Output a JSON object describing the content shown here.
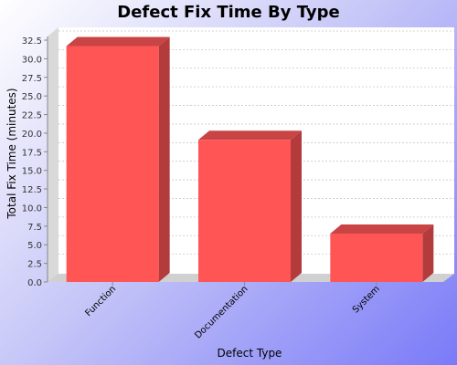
{
  "chart_data": {
    "type": "bar",
    "title": "Defect Fix Time By Type",
    "xlabel": "Defect Type",
    "ylabel": "Total Fix Time (minutes)",
    "categories": [
      "Function",
      "Documentation",
      "System"
    ],
    "values": [
      31.7,
      19.1,
      6.5
    ],
    "ylim": [
      0,
      32.5
    ],
    "yticks": [
      "0.0",
      "2.5",
      "5.0",
      "7.5",
      "10.0",
      "12.5",
      "15.0",
      "17.5",
      "20.0",
      "22.5",
      "25.0",
      "27.5",
      "30.0",
      "32.5"
    ],
    "grid": true,
    "bar_color": "#ff5555",
    "bar_side_color": "#b33b3b",
    "bar_top_color": "#c94444"
  }
}
